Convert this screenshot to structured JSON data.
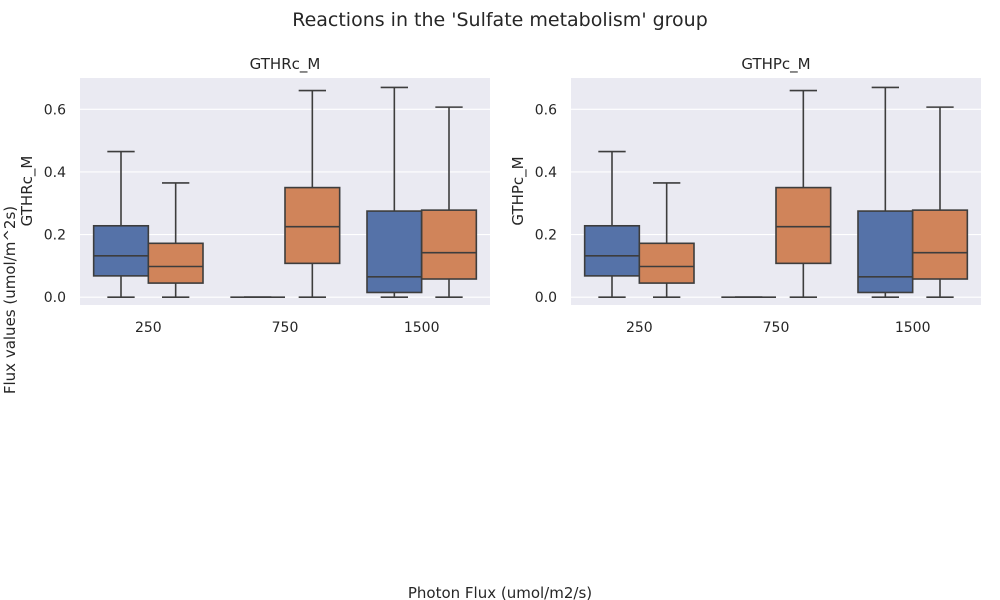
{
  "figure": {
    "title": "Reactions in the 'Sulfate metabolism' group",
    "supxlabel": "Photon Flux (umol/m2/s)",
    "supylabel": "Flux values (umol/m^2s)"
  },
  "colors": {
    "series_1": "#5572a8",
    "series_2": "#d0845a",
    "panel_background": "#eaeaf2",
    "grid": "#ffffff",
    "box_edge": "#3d3d3d"
  },
  "chart_data": [
    {
      "type": "box",
      "title": "GTHRc_M",
      "ylabel": "GTHRc_M",
      "xlabel": "",
      "categories": [
        "250",
        "750",
        "1500"
      ],
      "ylim": [
        -0.025,
        0.7
      ],
      "yticks": [
        0.0,
        0.2,
        0.4,
        0.6
      ],
      "ytick_labels": [
        "0.0",
        "0.2",
        "0.4",
        "0.6"
      ],
      "grid": true,
      "series": [
        {
          "values": [
            {
              "min": 0.0,
              "q1": 0.068,
              "median": 0.132,
              "q3": 0.228,
              "max": 0.465
            },
            {
              "min": 0.0,
              "q1": 0.0,
              "median": 0.0,
              "q3": 0.0,
              "max": 0.0
            },
            {
              "min": 0.0,
              "q1": 0.015,
              "median": 0.065,
              "q3": 0.275,
              "max": 0.67
            }
          ]
        },
        {
          "values": [
            {
              "min": 0.0,
              "q1": 0.045,
              "median": 0.098,
              "q3": 0.172,
              "max": 0.365
            },
            {
              "min": 0.0,
              "q1": 0.108,
              "median": 0.225,
              "q3": 0.35,
              "max": 0.66
            },
            {
              "min": 0.0,
              "q1": 0.058,
              "median": 0.142,
              "q3": 0.278,
              "max": 0.607
            }
          ]
        }
      ]
    },
    {
      "type": "box",
      "title": "GTHPc_M",
      "ylabel": "GTHPc_M",
      "xlabel": "",
      "categories": [
        "250",
        "750",
        "1500"
      ],
      "ylim": [
        -0.025,
        0.7
      ],
      "yticks": [
        0.0,
        0.2,
        0.4,
        0.6
      ],
      "ytick_labels": [
        "0.0",
        "0.2",
        "0.4",
        "0.6"
      ],
      "grid": true,
      "series": [
        {
          "values": [
            {
              "min": 0.0,
              "q1": 0.068,
              "median": 0.132,
              "q3": 0.228,
              "max": 0.465
            },
            {
              "min": 0.0,
              "q1": 0.0,
              "median": 0.0,
              "q3": 0.0,
              "max": 0.0
            },
            {
              "min": 0.0,
              "q1": 0.015,
              "median": 0.065,
              "q3": 0.275,
              "max": 0.67
            }
          ]
        },
        {
          "values": [
            {
              "min": 0.0,
              "q1": 0.045,
              "median": 0.098,
              "q3": 0.172,
              "max": 0.365
            },
            {
              "min": 0.0,
              "q1": 0.108,
              "median": 0.225,
              "q3": 0.35,
              "max": 0.66
            },
            {
              "min": 0.0,
              "q1": 0.058,
              "median": 0.142,
              "q3": 0.278,
              "max": 0.607
            }
          ]
        }
      ]
    }
  ]
}
